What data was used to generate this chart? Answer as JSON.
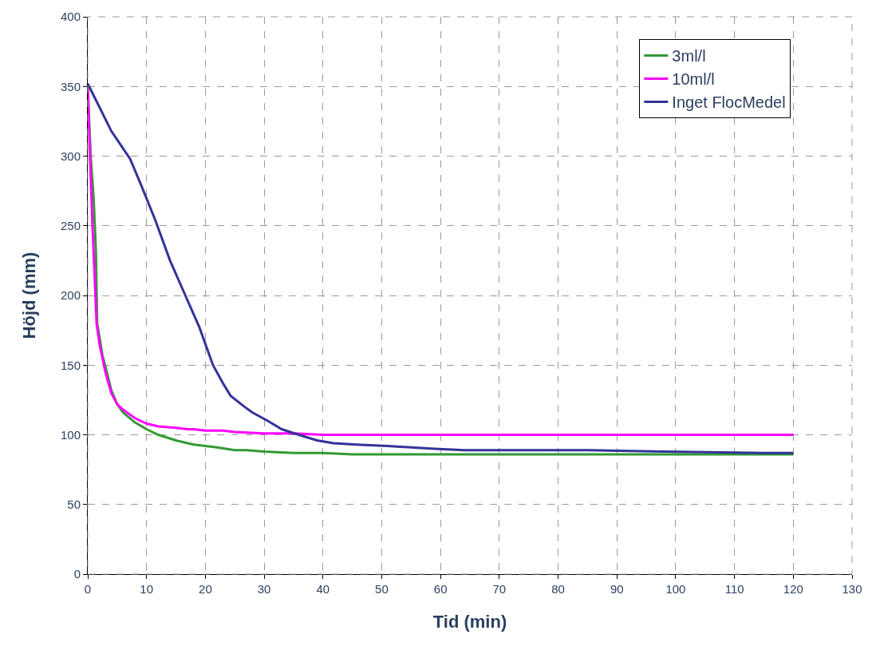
{
  "chart_data": {
    "type": "line",
    "xlabel": "Tid (min)",
    "ylabel": "Höjd (mm)",
    "xlim": [
      0,
      130
    ],
    "xticks": [
      0,
      10,
      20,
      30,
      40,
      50,
      60,
      70,
      80,
      90,
      100,
      110,
      120,
      130
    ],
    "ylim": [
      0,
      400
    ],
    "yticks": [
      0,
      50,
      100,
      150,
      200,
      250,
      300,
      350,
      400
    ],
    "grid": true,
    "legend": "top right",
    "marker": "none",
    "line_style": "solid",
    "series": [
      {
        "name": "3ml/l",
        "color": "#339933",
        "x": [
          0,
          0.5,
          1,
          1.4,
          1.6,
          2,
          2.5,
          3,
          4,
          5,
          6,
          8,
          10,
          12,
          15,
          18,
          20,
          22,
          25,
          27,
          30,
          35,
          40,
          45,
          50,
          120
        ],
        "values": [
          350,
          300,
          270,
          230,
          180,
          170,
          157,
          149,
          132,
          122,
          116,
          109,
          104,
          100,
          96,
          93,
          92,
          91,
          89,
          89,
          88,
          87,
          87,
          86,
          86,
          86
        ]
      },
      {
        "name": "10ml/l",
        "color": "#ff00ff",
        "x": [
          0,
          0.3,
          0.8,
          1,
          1.5,
          2,
          3,
          4,
          5,
          6,
          8,
          10,
          12,
          15,
          17,
          18,
          20,
          23,
          25,
          30,
          35,
          40,
          120
        ],
        "values": [
          350,
          310,
          250,
          230,
          180,
          165,
          145,
          130,
          122,
          118,
          112,
          108,
          106,
          105,
          104,
          104,
          103,
          103,
          102,
          101,
          101,
          100,
          100
        ]
      },
      {
        "name": "Inget FlocMedel",
        "color": "#333399",
        "x": [
          0,
          2,
          4,
          7.2,
          9,
          11.4,
          14,
          16.6,
          19,
          21.3,
          23,
          24.3,
          26.7,
          28,
          30.6,
          33,
          35.9,
          39,
          41.8,
          45.7,
          51,
          55,
          59,
          64,
          75,
          85,
          98,
          115,
          120
        ],
        "values": [
          352,
          335,
          318,
          298,
          280,
          255,
          225,
          200,
          177,
          150,
          137,
          128,
          120,
          116,
          110,
          104,
          100,
          96,
          94,
          93,
          92,
          91,
          90,
          89,
          89,
          89,
          88,
          87,
          87
        ]
      }
    ]
  }
}
